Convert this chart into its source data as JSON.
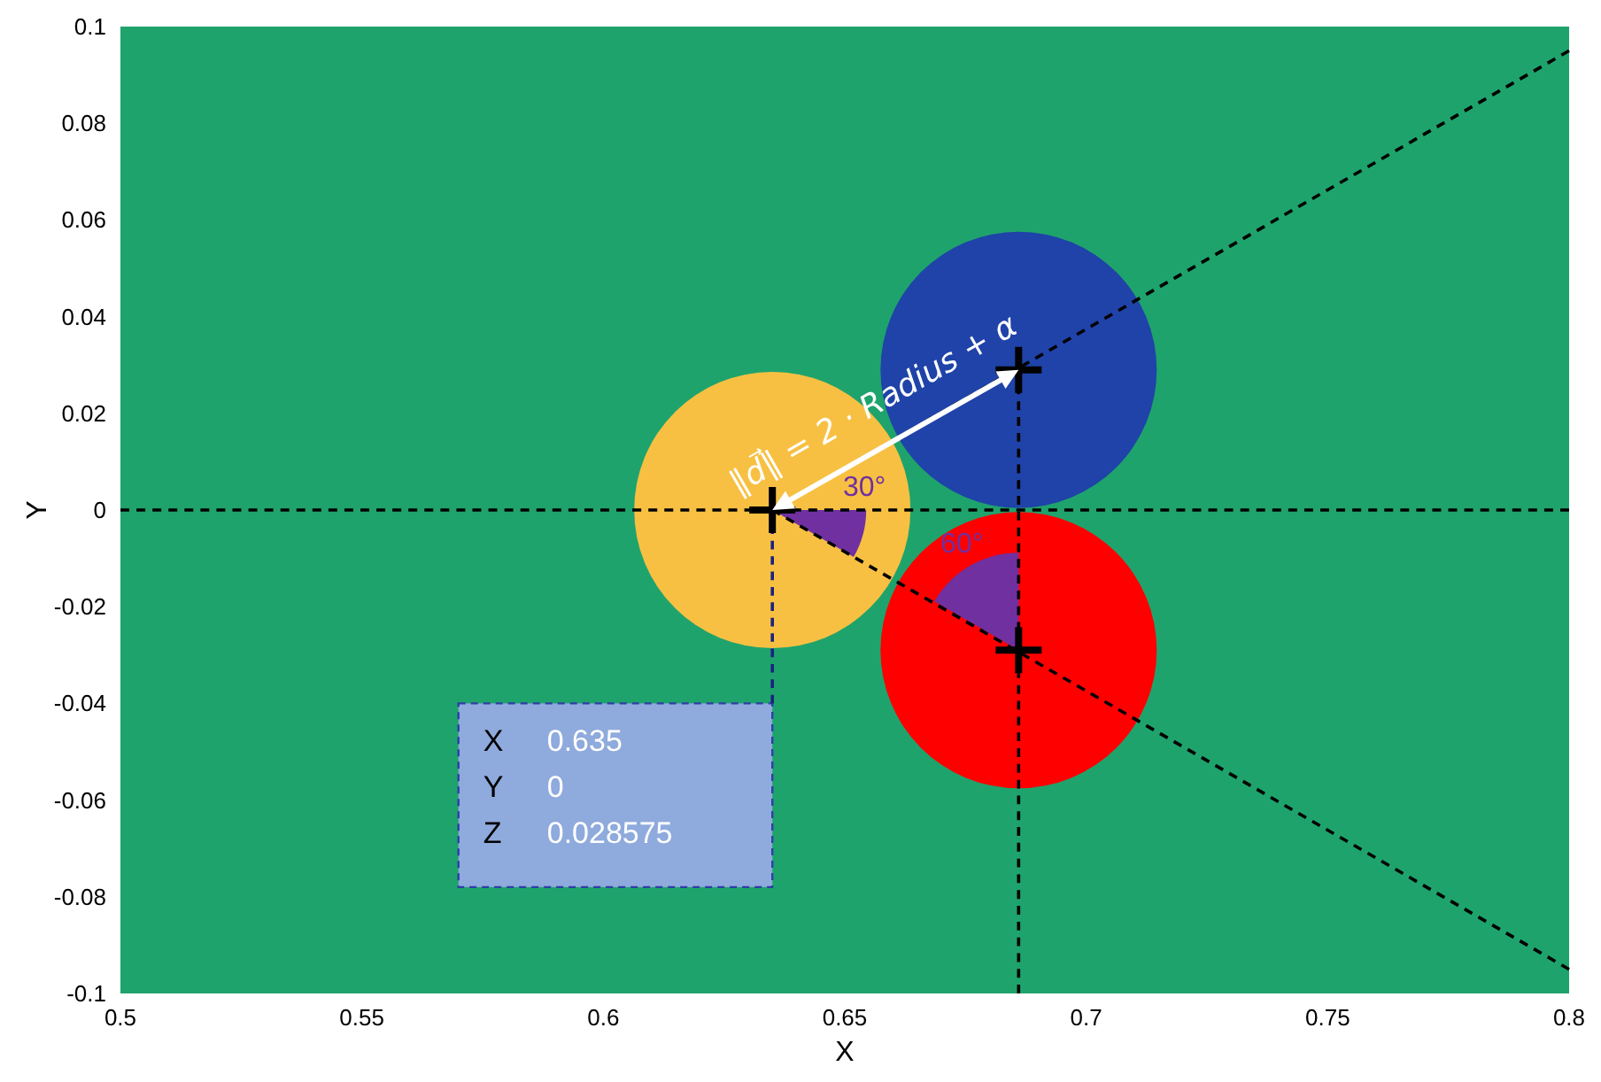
{
  "chart_data": {
    "type": "bubble",
    "xlabel": "X",
    "ylabel": "Y",
    "xlim": [
      0.5,
      0.8
    ],
    "xticks": [
      0.5,
      0.55,
      0.6,
      0.65,
      0.7,
      0.75,
      0.8
    ],
    "ylim": [
      -0.1,
      0.1
    ],
    "yticks": [
      -0.1,
      -0.08,
      -0.06,
      -0.04,
      -0.02,
      0,
      0.02,
      0.04,
      0.06,
      0.08,
      0.1
    ],
    "grid": false,
    "series": [
      {
        "x": [
          0.635,
          0.686,
          0.686
        ],
        "values": [
          0,
          0.029,
          -0.029
        ],
        "sizes": [
          1,
          1,
          1
        ],
        "colors": [
          "#f8c042",
          "#1f43a8",
          "#ff0000"
        ]
      },
      {
        "type": "line",
        "color": "#000000",
        "line_style": "dashed",
        "marker": "none",
        "x": [
          0.635,
          0.8
        ],
        "values": [
          0,
          0.095
        ]
      },
      {
        "type": "line",
        "color": "#000000",
        "line_style": "dashed",
        "marker": "none",
        "x": [
          0.635,
          0.8
        ],
        "values": [
          0,
          -0.095
        ]
      },
      {
        "type": "line",
        "color": "#000000",
        "line_style": "dashed",
        "marker": "none",
        "x": [
          0.686,
          0.686
        ],
        "values": [
          0.029,
          -0.1
        ]
      },
      {
        "type": "line",
        "color": "#1a237e",
        "line_style": "dashed",
        "marker": "none",
        "x": [
          0.635,
          0.635
        ],
        "values": [
          0,
          -0.04
        ]
      },
      {
        "type": "scatter",
        "color": "#000000",
        "marker": "cross",
        "x": [
          0.635,
          0.686,
          0.686
        ],
        "values": [
          0,
          0.029,
          -0.029
        ]
      }
    ],
    "ref_lines": [
      {
        "axis": "y",
        "value": 0,
        "color": "#000000",
        "line_style": "dashed"
      }
    ],
    "annotations": [
      {
        "text": "‖d⃗‖ = 2 · Radius + α",
        "x": 0.657,
        "y": 0.02
      },
      "30°",
      "60°",
      "X 0.635",
      "Y 0",
      "Z 0.028575"
    ]
  }
}
